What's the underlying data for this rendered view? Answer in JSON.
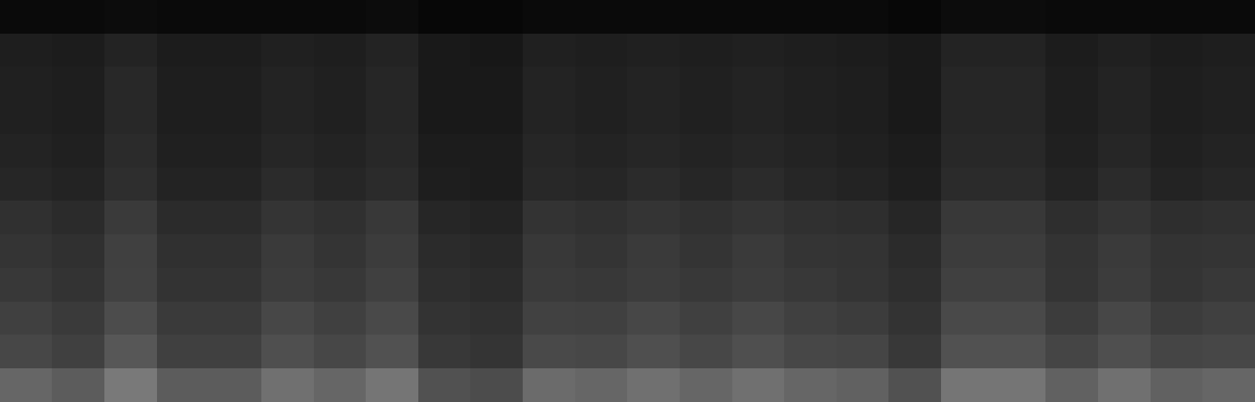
{
  "chart_data": {
    "type": "heatmap",
    "color": "gray",
    "tick_labels": false,
    "value_range": [
      0,
      1
    ],
    "values": [
      [
        0.04,
        0.04,
        0.05,
        0.04,
        0.04,
        0.04,
        0.04,
        0.05,
        0.03,
        0.03,
        0.04,
        0.04,
        0.04,
        0.04,
        0.04,
        0.04,
        0.04,
        0.03,
        0.05,
        0.05,
        0.04,
        0.04,
        0.04,
        0.04
      ],
      [
        0.12,
        0.11,
        0.14,
        0.11,
        0.11,
        0.13,
        0.12,
        0.14,
        0.1,
        0.09,
        0.13,
        0.12,
        0.13,
        0.12,
        0.13,
        0.12,
        0.11,
        0.1,
        0.14,
        0.14,
        0.11,
        0.13,
        0.11,
        0.12
      ],
      [
        0.13,
        0.12,
        0.16,
        0.12,
        0.12,
        0.14,
        0.13,
        0.15,
        0.1,
        0.1,
        0.14,
        0.13,
        0.14,
        0.13,
        0.14,
        0.13,
        0.12,
        0.1,
        0.15,
        0.15,
        0.12,
        0.14,
        0.12,
        0.13
      ],
      [
        0.13,
        0.12,
        0.16,
        0.12,
        0.12,
        0.14,
        0.13,
        0.15,
        0.1,
        0.1,
        0.14,
        0.13,
        0.14,
        0.13,
        0.14,
        0.13,
        0.12,
        0.1,
        0.15,
        0.15,
        0.12,
        0.14,
        0.12,
        0.13
      ],
      [
        0.14,
        0.13,
        0.17,
        0.13,
        0.13,
        0.15,
        0.14,
        0.16,
        0.11,
        0.11,
        0.15,
        0.14,
        0.15,
        0.14,
        0.15,
        0.14,
        0.13,
        0.11,
        0.16,
        0.16,
        0.13,
        0.15,
        0.13,
        0.14
      ],
      [
        0.15,
        0.14,
        0.18,
        0.14,
        0.14,
        0.17,
        0.15,
        0.17,
        0.12,
        0.11,
        0.16,
        0.15,
        0.17,
        0.15,
        0.17,
        0.15,
        0.14,
        0.12,
        0.17,
        0.17,
        0.14,
        0.17,
        0.14,
        0.15
      ],
      [
        0.19,
        0.17,
        0.23,
        0.17,
        0.17,
        0.21,
        0.19,
        0.22,
        0.15,
        0.14,
        0.2,
        0.19,
        0.21,
        0.19,
        0.21,
        0.19,
        0.18,
        0.15,
        0.22,
        0.22,
        0.18,
        0.21,
        0.18,
        0.19
      ],
      [
        0.21,
        0.19,
        0.25,
        0.19,
        0.19,
        0.23,
        0.21,
        0.24,
        0.17,
        0.16,
        0.22,
        0.21,
        0.23,
        0.21,
        0.23,
        0.21,
        0.2,
        0.17,
        0.24,
        0.24,
        0.2,
        0.23,
        0.2,
        0.21
      ],
      [
        0.22,
        0.2,
        0.26,
        0.2,
        0.2,
        0.24,
        0.22,
        0.25,
        0.18,
        0.17,
        0.23,
        0.22,
        0.24,
        0.22,
        0.24,
        0.22,
        0.21,
        0.18,
        0.25,
        0.25,
        0.21,
        0.24,
        0.21,
        0.22
      ],
      [
        0.25,
        0.23,
        0.3,
        0.23,
        0.23,
        0.28,
        0.25,
        0.29,
        0.2,
        0.19,
        0.26,
        0.25,
        0.28,
        0.25,
        0.28,
        0.25,
        0.24,
        0.2,
        0.29,
        0.29,
        0.24,
        0.28,
        0.24,
        0.25
      ],
      [
        0.28,
        0.25,
        0.34,
        0.25,
        0.25,
        0.31,
        0.28,
        0.32,
        0.22,
        0.21,
        0.29,
        0.28,
        0.31,
        0.28,
        0.31,
        0.28,
        0.27,
        0.22,
        0.32,
        0.32,
        0.27,
        0.31,
        0.27,
        0.28
      ],
      [
        0.4,
        0.36,
        0.48,
        0.36,
        0.36,
        0.44,
        0.4,
        0.46,
        0.32,
        0.3,
        0.42,
        0.4,
        0.44,
        0.4,
        0.44,
        0.4,
        0.38,
        0.32,
        0.46,
        0.46,
        0.38,
        0.44,
        0.38,
        0.4
      ]
    ]
  }
}
